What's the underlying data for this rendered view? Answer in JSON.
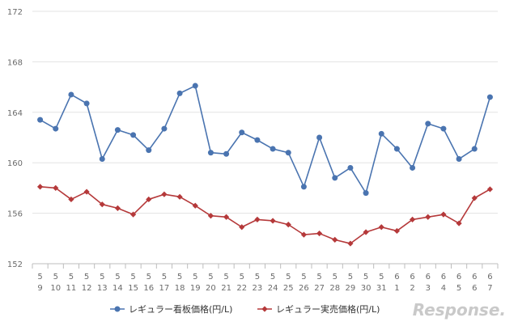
{
  "chart_data": {
    "type": "line",
    "title": "",
    "xlabel": "",
    "ylabel": "",
    "ylim": [
      152,
      172
    ],
    "yticks": [
      "152",
      "156",
      "160",
      "164",
      "168",
      "172"
    ],
    "categories": [
      {
        "month": "5",
        "day": "9"
      },
      {
        "month": "5",
        "day": "10"
      },
      {
        "month": "5",
        "day": "11"
      },
      {
        "month": "5",
        "day": "12"
      },
      {
        "month": "5",
        "day": "13"
      },
      {
        "month": "5",
        "day": "14"
      },
      {
        "month": "5",
        "day": "15"
      },
      {
        "month": "5",
        "day": "16"
      },
      {
        "month": "5",
        "day": "17"
      },
      {
        "month": "5",
        "day": "18"
      },
      {
        "month": "5",
        "day": "19"
      },
      {
        "month": "5",
        "day": "20"
      },
      {
        "month": "5",
        "day": "21"
      },
      {
        "month": "5",
        "day": "22"
      },
      {
        "month": "5",
        "day": "23"
      },
      {
        "month": "5",
        "day": "24"
      },
      {
        "month": "5",
        "day": "25"
      },
      {
        "month": "5",
        "day": "26"
      },
      {
        "month": "5",
        "day": "27"
      },
      {
        "month": "5",
        "day": "28"
      },
      {
        "month": "5",
        "day": "29"
      },
      {
        "month": "5",
        "day": "30"
      },
      {
        "month": "5",
        "day": "31"
      },
      {
        "month": "6",
        "day": "1"
      },
      {
        "month": "6",
        "day": "2"
      },
      {
        "month": "6",
        "day": "3"
      },
      {
        "month": "6",
        "day": "4"
      },
      {
        "month": "6",
        "day": "5"
      },
      {
        "month": "6",
        "day": "6"
      },
      {
        "month": "6",
        "day": "7"
      }
    ],
    "series": [
      {
        "name": "レギュラー看板価格(円/L)",
        "color": "#4a74b0",
        "marker": "circle",
        "values": [
          163.4,
          162.7,
          165.4,
          164.7,
          160.3,
          162.6,
          162.2,
          161.0,
          162.7,
          165.5,
          166.1,
          160.8,
          160.7,
          162.4,
          161.8,
          161.1,
          160.8,
          158.1,
          162.0,
          158.8,
          159.6,
          157.6,
          162.3,
          161.1,
          159.6,
          163.1,
          162.7,
          160.3,
          161.1,
          165.2
        ]
      },
      {
        "name": "レギュラー実売価格(円/L)",
        "color": "#b5393a",
        "marker": "diamond",
        "values": [
          158.1,
          158.0,
          157.1,
          157.7,
          156.7,
          156.4,
          155.9,
          157.1,
          157.5,
          157.3,
          156.6,
          155.8,
          155.7,
          154.9,
          155.5,
          155.4,
          155.1,
          154.3,
          154.4,
          153.9,
          153.6,
          154.5,
          154.9,
          154.6,
          155.5,
          155.7,
          155.9,
          155.2,
          157.2,
          157.9
        ]
      }
    ],
    "grid": true,
    "legend": "bottom-center"
  },
  "watermark": {
    "text": "Response."
  }
}
